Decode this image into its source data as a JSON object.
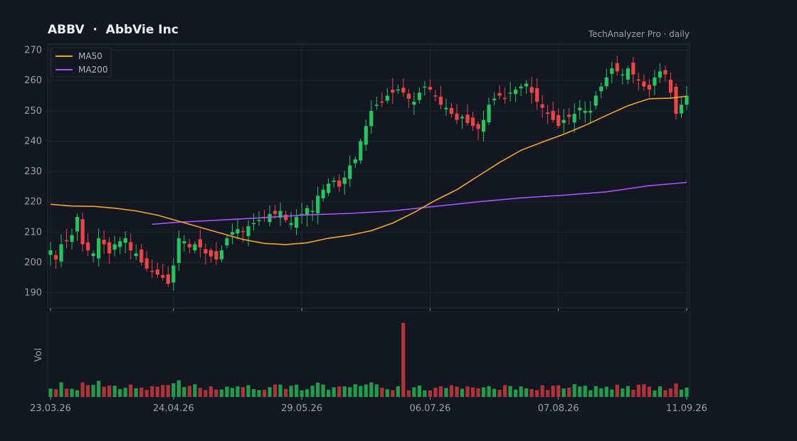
{
  "header": {
    "title": "ABBV  ·  AbbVie Inc",
    "subtitle": "TechAnalyzer Pro · daily"
  },
  "chart_data": {
    "type": "candlestick",
    "grid": true,
    "legend_position": "top-left",
    "price_axis": {
      "ylim": [
        185,
        272
      ],
      "ticks": [
        190,
        200,
        210,
        220,
        230,
        240,
        250,
        260,
        270
      ]
    },
    "volume_axis": {
      "label": "Vol"
    },
    "x_tick_labels": [
      "23.03.26",
      "24.04.26",
      "29.05.26",
      "06.07.26",
      "07.08.26",
      "11.09.26"
    ],
    "x_tick_index": [
      0,
      23,
      47,
      71,
      95,
      119
    ],
    "colors": {
      "up": "#22c55e",
      "down": "#ef4444",
      "ma50": "#f5a524",
      "ma200": "#a855f7",
      "grid": "#1f2433",
      "background": "#131722"
    },
    "legend": [
      {
        "name": "MA50",
        "color": "#f5a524"
      },
      {
        "name": "MA200",
        "color": "#a855f7"
      }
    ],
    "close_path": [
      204,
      201,
      206,
      207,
      209,
      215,
      206,
      204,
      203,
      208,
      206,
      203,
      206,
      207,
      208,
      204,
      203,
      200,
      198,
      197,
      196,
      195,
      193,
      199,
      208,
      207,
      205,
      206,
      205,
      203,
      202,
      201,
      204,
      208,
      210,
      211,
      210,
      212,
      213,
      214,
      215,
      216,
      216,
      217,
      214,
      213,
      215,
      216,
      218,
      217,
      222,
      224,
      226,
      227,
      225,
      228,
      232,
      234,
      240,
      245,
      250,
      252,
      253,
      255,
      256,
      257,
      256,
      254,
      253,
      256,
      258,
      257,
      255,
      252,
      251,
      249,
      247,
      248,
      246,
      245,
      244,
      247,
      252,
      254,
      255,
      254,
      256,
      257,
      258,
      259,
      256,
      253,
      251,
      249,
      247,
      245,
      247,
      248,
      249,
      251,
      250,
      250,
      255,
      258,
      261,
      264,
      263,
      262,
      264,
      262,
      260,
      258,
      257,
      261,
      263,
      262,
      256,
      249,
      252,
      255
    ],
    "ma50": [
      {
        "i": 0,
        "v": 219.2
      },
      {
        "i": 4,
        "v": 218.6
      },
      {
        "i": 8,
        "v": 218.5
      },
      {
        "i": 12,
        "v": 217.9
      },
      {
        "i": 16,
        "v": 217.0
      },
      {
        "i": 20,
        "v": 215.6
      },
      {
        "i": 24,
        "v": 213.6
      },
      {
        "i": 28,
        "v": 211.6
      },
      {
        "i": 32,
        "v": 209.6
      },
      {
        "i": 36,
        "v": 207.6
      },
      {
        "i": 40,
        "v": 206.3
      },
      {
        "i": 44,
        "v": 205.9
      },
      {
        "i": 48,
        "v": 206.5
      },
      {
        "i": 52,
        "v": 208.0
      },
      {
        "i": 56,
        "v": 209.0
      },
      {
        "i": 60,
        "v": 210.5
      },
      {
        "i": 64,
        "v": 213.0
      },
      {
        "i": 68,
        "v": 216.5
      },
      {
        "i": 72,
        "v": 220.5
      },
      {
        "i": 76,
        "v": 224.0
      },
      {
        "i": 80,
        "v": 228.5
      },
      {
        "i": 84,
        "v": 233.0
      },
      {
        "i": 88,
        "v": 237.0
      },
      {
        "i": 92,
        "v": 239.7
      },
      {
        "i": 96,
        "v": 242.3
      },
      {
        "i": 100,
        "v": 245.2
      },
      {
        "i": 104,
        "v": 248.5
      },
      {
        "i": 108,
        "v": 251.7
      },
      {
        "i": 112,
        "v": 254.0
      },
      {
        "i": 116,
        "v": 254.2
      },
      {
        "i": 119,
        "v": 254.8
      }
    ],
    "ma200": [
      {
        "i": 19,
        "v": 212.6
      },
      {
        "i": 24,
        "v": 213.3
      },
      {
        "i": 32,
        "v": 214.0
      },
      {
        "i": 40,
        "v": 214.8
      },
      {
        "i": 48,
        "v": 215.7
      },
      {
        "i": 56,
        "v": 216.2
      },
      {
        "i": 64,
        "v": 217.0
      },
      {
        "i": 72,
        "v": 218.5
      },
      {
        "i": 80,
        "v": 220.0
      },
      {
        "i": 88,
        "v": 221.3
      },
      {
        "i": 96,
        "v": 222.2
      },
      {
        "i": 104,
        "v": 223.3
      },
      {
        "i": 112,
        "v": 225.3
      },
      {
        "i": 119,
        "v": 226.4
      }
    ],
    "volume_spike_index": 66
  }
}
